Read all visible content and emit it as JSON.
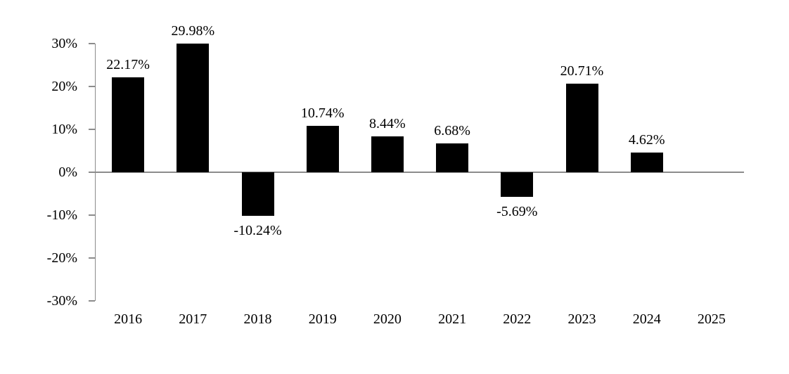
{
  "chart_data": {
    "type": "bar",
    "categories": [
      "2016",
      "2017",
      "2018",
      "2019",
      "2020",
      "2021",
      "2022",
      "2023",
      "2024",
      "2025"
    ],
    "values": [
      22.17,
      29.98,
      -10.24,
      10.74,
      8.44,
      6.68,
      -5.69,
      20.71,
      4.62,
      null
    ],
    "value_labels": [
      "22.17%",
      "29.98%",
      "-10.24%",
      "10.74%",
      "8.44%",
      "6.68%",
      "-5.69%",
      "20.71%",
      "4.62%",
      ""
    ],
    "title": "",
    "xlabel": "",
    "ylabel": "",
    "ylim": [
      -30,
      30
    ],
    "yticks": [
      30,
      20,
      10,
      0,
      -10,
      -20,
      -30
    ],
    "ytick_labels": [
      "30%",
      "20%",
      "10%",
      "0%",
      "-10%",
      "-20%",
      "-30%"
    ],
    "grid": "off",
    "legend": "none",
    "label_position": "outside-end",
    "colors": {
      "bar": "#000000",
      "axis": "#8c8c8c",
      "text": "#000000",
      "background": "#ffffff"
    }
  }
}
